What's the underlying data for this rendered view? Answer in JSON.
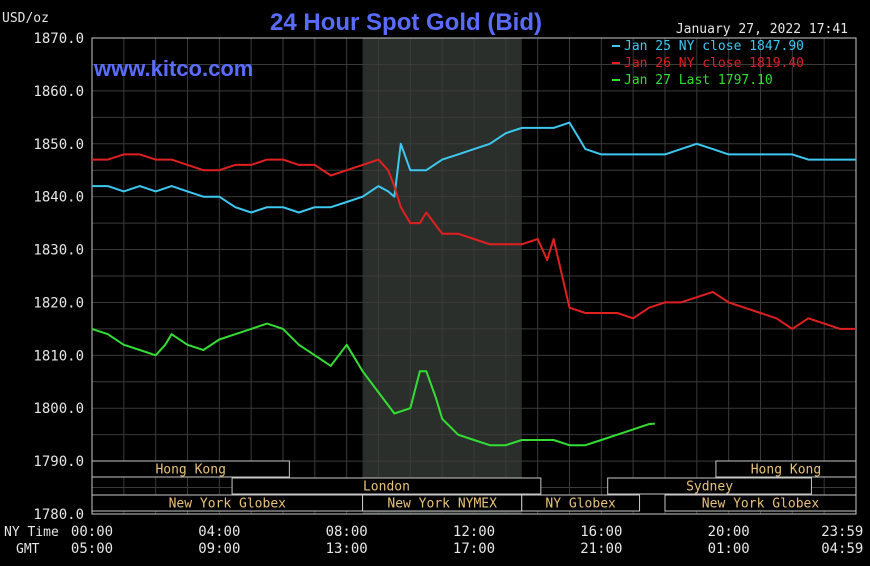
{
  "chart_data": {
    "type": "line",
    "title": "24 Hour Spot Gold (Bid)",
    "unit_label": "USD/oz",
    "site": "www.kitco.com",
    "timestamp": "January 27, 2022 17:41",
    "ylim": [
      1780,
      1870
    ],
    "y_ticks": [
      "1870.0",
      "1860.0",
      "1850.0",
      "1840.0",
      "1830.0",
      "1820.0",
      "1810.0",
      "1800.0",
      "1790.0",
      "1780.0"
    ],
    "xlim": [
      0,
      24
    ],
    "x_ticks_ny": [
      "00:00",
      "04:00",
      "08:00",
      "12:00",
      "16:00",
      "20:00",
      "23:59"
    ],
    "x_ticks_gmt": [
      "05:00",
      "09:00",
      "13:00",
      "17:00",
      "21:00",
      "01:00",
      "04:59"
    ],
    "x_ticks_hours": [
      0,
      4,
      8,
      12,
      16,
      20,
      23.98
    ],
    "row_label_ny": "NY Time",
    "row_label_gmt": "GMT",
    "shaded_hours": [
      8.5,
      13.5
    ],
    "grid": true,
    "series": [
      {
        "name": "Jan 25 NY close 1847.90",
        "color": "#3cc8f0",
        "x": [
          0,
          0.5,
          1,
          1.5,
          2,
          2.5,
          3,
          3.5,
          4,
          4.5,
          5,
          5.5,
          6,
          6.5,
          7,
          7.5,
          8,
          8.5,
          9,
          9.3,
          9.5,
          9.7,
          10,
          10.5,
          11,
          11.5,
          12,
          12.5,
          13,
          13.5,
          14,
          14.5,
          15,
          15.3,
          15.5,
          16,
          16.5,
          17,
          17.5,
          18,
          18.5,
          19,
          19.5,
          20,
          20.5,
          21,
          21.5,
          22,
          22.5,
          23,
          23.5,
          24
        ],
        "y": [
          1842,
          1842,
          1841,
          1842,
          1841,
          1842,
          1841,
          1840,
          1840,
          1838,
          1837,
          1838,
          1838,
          1837,
          1838,
          1838,
          1839,
          1840,
          1842,
          1841,
          1840,
          1850,
          1845,
          1845,
          1847,
          1848,
          1849,
          1850,
          1852,
          1853,
          1853,
          1853,
          1854,
          1851,
          1849,
          1848,
          1848,
          1848,
          1848,
          1848,
          1849,
          1850,
          1849,
          1848,
          1848,
          1848,
          1848,
          1848,
          1847,
          1847,
          1847,
          1847
        ]
      },
      {
        "name": "Jan 26 NY close 1819.40",
        "color": "#e02020",
        "x": [
          0,
          0.5,
          1,
          1.5,
          2,
          2.5,
          3,
          3.5,
          4,
          4.5,
          5,
          5.5,
          6,
          6.5,
          7,
          7.5,
          8,
          8.5,
          9,
          9.3,
          9.5,
          9.7,
          10,
          10.3,
          10.5,
          11,
          11.5,
          12,
          12.5,
          13,
          13.5,
          14,
          14.3,
          14.5,
          15,
          15.5,
          16,
          16.5,
          17,
          17.5,
          18,
          18.5,
          19,
          19.5,
          20,
          20.5,
          21,
          21.5,
          22,
          22.5,
          23,
          23.5,
          24
        ],
        "y": [
          1847,
          1847,
          1848,
          1848,
          1847,
          1847,
          1846,
          1845,
          1845,
          1846,
          1846,
          1847,
          1847,
          1846,
          1846,
          1844,
          1845,
          1846,
          1847,
          1845,
          1842,
          1838,
          1835,
          1835,
          1837,
          1833,
          1833,
          1832,
          1831,
          1831,
          1831,
          1832,
          1828,
          1832,
          1819,
          1818,
          1818,
          1818,
          1817,
          1819,
          1820,
          1820,
          1821,
          1822,
          1820,
          1819,
          1818,
          1817,
          1815,
          1817,
          1816,
          1815,
          1815
        ]
      },
      {
        "name": "Jan 27 Last 1797.10",
        "color": "#33dd33",
        "x": [
          0,
          0.5,
          1,
          1.5,
          2,
          2.3,
          2.5,
          3,
          3.5,
          4,
          4.5,
          5,
          5.5,
          6,
          6.5,
          7,
          7.5,
          8,
          8.5,
          9,
          9.5,
          10,
          10.3,
          10.5,
          10.8,
          11,
          11.5,
          12,
          12.5,
          13,
          13.5,
          14,
          14.5,
          15,
          15.5,
          16,
          16.5,
          17,
          17.5,
          17.68
        ],
        "y": [
          1815,
          1814,
          1812,
          1811,
          1810,
          1812,
          1814,
          1812,
          1811,
          1813,
          1814,
          1815,
          1816,
          1815,
          1812,
          1810,
          1808,
          1812,
          1807,
          1803,
          1799,
          1800,
          1807,
          1807,
          1802,
          1798,
          1795,
          1794,
          1793,
          1793,
          1794,
          1794,
          1794,
          1793,
          1793,
          1794,
          1795,
          1796,
          1797,
          1797.1
        ]
      }
    ],
    "sessions": [
      {
        "label": "Hong Kong",
        "start": 0,
        "end": 6.2,
        "row": 0
      },
      {
        "label": "Hong Kong",
        "start": 19.6,
        "end": 24,
        "row": 0
      },
      {
        "label": "London",
        "start": 4.4,
        "end": 14.1,
        "row": 1
      },
      {
        "label": "Sydney",
        "start": 16.2,
        "end": 22.6,
        "row": 1
      },
      {
        "label": "New York Globex",
        "start": 0,
        "end": 8.5,
        "row": 2
      },
      {
        "label": "New York NYMEX",
        "start": 8.5,
        "end": 13.5,
        "row": 2
      },
      {
        "label": "NY Globex",
        "start": 13.5,
        "end": 17.2,
        "row": 2
      },
      {
        "label": "New York Globex",
        "start": 18.0,
        "end": 24,
        "row": 2
      }
    ]
  }
}
